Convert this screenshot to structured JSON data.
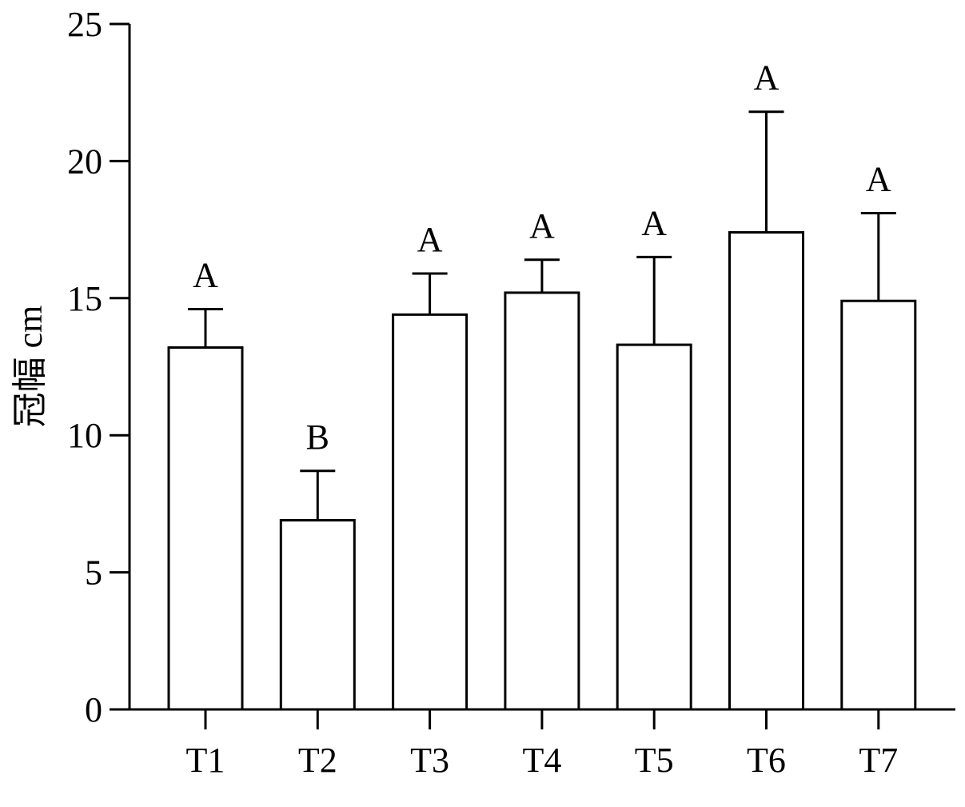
{
  "chart_data": {
    "type": "bar",
    "categories": [
      "T1",
      "T2",
      "T3",
      "T4",
      "T5",
      "T6",
      "T7"
    ],
    "values": [
      13.2,
      6.9,
      14.4,
      15.2,
      13.3,
      17.4,
      14.9
    ],
    "error": [
      1.4,
      1.8,
      1.5,
      1.2,
      3.2,
      4.4,
      3.2
    ],
    "significance": [
      "A",
      "B",
      "A",
      "A",
      "A",
      "A",
      "A"
    ],
    "ylabel": "冠幅 cm",
    "xlabel": "",
    "title": "",
    "ylim": [
      0,
      25
    ],
    "yticks": [
      0,
      5,
      10,
      15,
      20,
      25
    ],
    "ytick_labels": [
      "0",
      "5",
      "10",
      "15",
      "20",
      "25"
    ],
    "bar_fill": "#ffffff",
    "stroke_color": "#000000",
    "grid": false,
    "legend": "none"
  }
}
